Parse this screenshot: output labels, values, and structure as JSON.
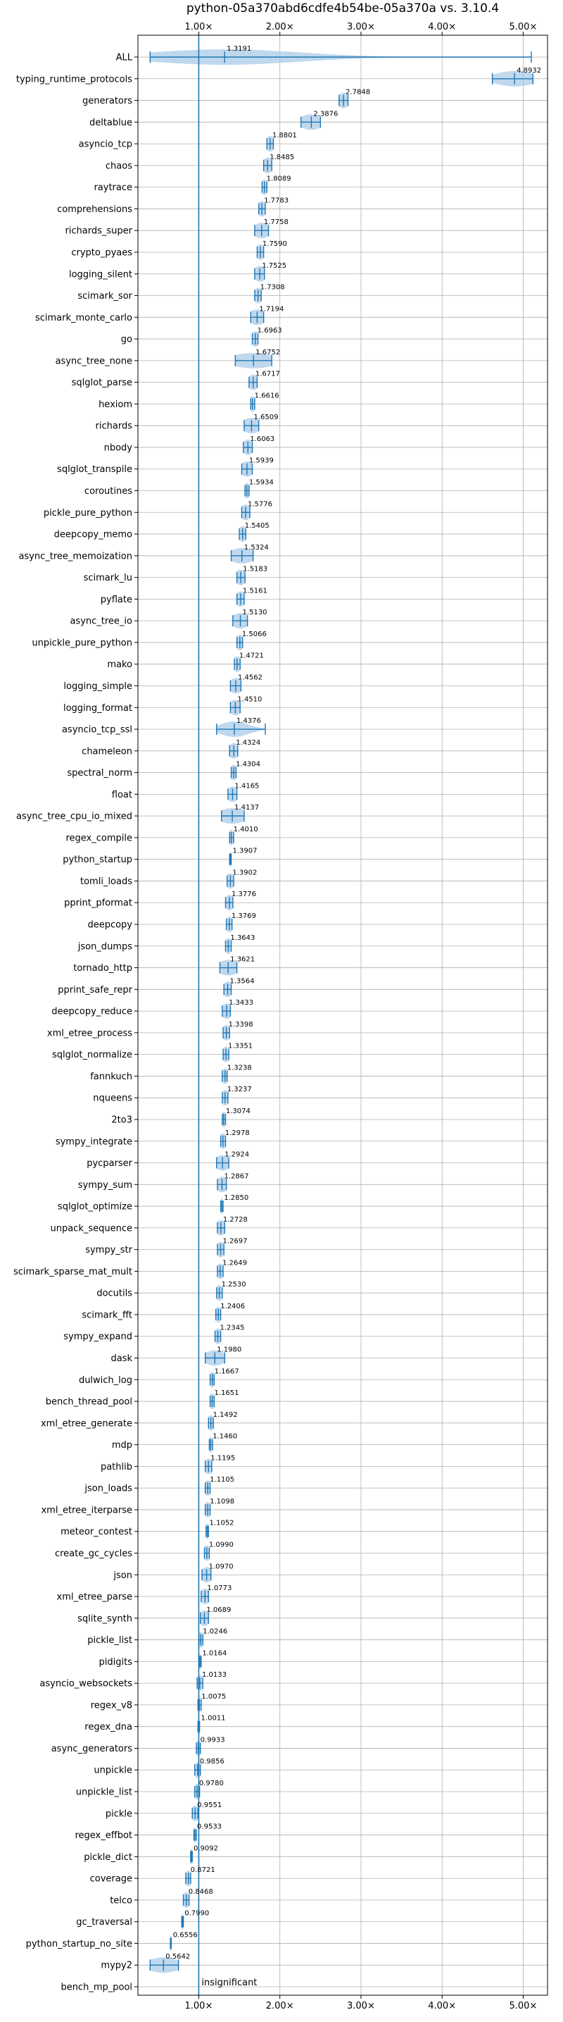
{
  "chart_data": {
    "type": "violin",
    "title": "python-05a370abd6cdfe4b54be-05a370a vs. 3.10.4",
    "xlim": [
      0.25,
      5.3
    ],
    "x_ticks": [
      1.0,
      2.0,
      3.0,
      4.0,
      5.0
    ],
    "x_tick_labels": [
      "1.00×",
      "2.00×",
      "3.00×",
      "4.00×",
      "5.00×"
    ],
    "reference_line": 1.0,
    "grid": true,
    "colors": {
      "accent": "#1f77b4",
      "violin": "#a9cbe8",
      "grid": "#b0b0b0"
    },
    "annotation": "insignificant",
    "benchmarks": [
      {
        "name": "ALL",
        "value": 1.3191,
        "label": "1.3191",
        "lo": 0.4,
        "hi": 5.1,
        "spread": 0.75
      },
      {
        "name": "typing_runtime_protocols",
        "value": 4.8932,
        "label": "4.8932",
        "lo": 4.62,
        "hi": 5.12,
        "spread": 0.2
      },
      {
        "name": "generators",
        "value": 2.7848,
        "label": "2.7848",
        "lo": 2.73,
        "hi": 2.84,
        "spread": 0.05
      },
      {
        "name": "deltablue",
        "value": 2.3876,
        "label": "2.3876",
        "lo": 2.26,
        "hi": 2.5,
        "spread": 0.11
      },
      {
        "name": "asyncio_tcp",
        "value": 1.8801,
        "label": "1.8801",
        "lo": 1.84,
        "hi": 1.92,
        "spread": 0.04
      },
      {
        "name": "chaos",
        "value": 1.8485,
        "label": "1.8485",
        "lo": 1.8,
        "hi": 1.9,
        "spread": 0.05
      },
      {
        "name": "raytrace",
        "value": 1.8089,
        "label": "1.8089",
        "lo": 1.78,
        "hi": 1.84,
        "spread": 0.03
      },
      {
        "name": "comprehensions",
        "value": 1.7783,
        "label": "1.7783",
        "lo": 1.74,
        "hi": 1.82,
        "spread": 0.04
      },
      {
        "name": "richards_super",
        "value": 1.7758,
        "label": "1.7758",
        "lo": 1.69,
        "hi": 1.86,
        "spread": 0.08
      },
      {
        "name": "crypto_pyaes",
        "value": 1.759,
        "label": "1.7590",
        "lo": 1.72,
        "hi": 1.8,
        "spread": 0.04
      },
      {
        "name": "logging_silent",
        "value": 1.7525,
        "label": "1.7525",
        "lo": 1.69,
        "hi": 1.81,
        "spread": 0.06
      },
      {
        "name": "scimark_sor",
        "value": 1.7308,
        "label": "1.7308",
        "lo": 1.69,
        "hi": 1.77,
        "spread": 0.04
      },
      {
        "name": "scimark_monte_carlo",
        "value": 1.7194,
        "label": "1.7194",
        "lo": 1.64,
        "hi": 1.8,
        "spread": 0.08
      },
      {
        "name": "go",
        "value": 1.6963,
        "label": "1.6963",
        "lo": 1.66,
        "hi": 1.73,
        "spread": 0.04
      },
      {
        "name": "async_tree_none",
        "value": 1.6752,
        "label": "1.6752",
        "lo": 1.45,
        "hi": 1.9,
        "spread": 0.22
      },
      {
        "name": "sqlglot_parse",
        "value": 1.6717,
        "label": "1.6717",
        "lo": 1.62,
        "hi": 1.72,
        "spread": 0.05
      },
      {
        "name": "hexiom",
        "value": 1.6616,
        "label": "1.6616",
        "lo": 1.64,
        "hi": 1.69,
        "spread": 0.03
      },
      {
        "name": "richards",
        "value": 1.6509,
        "label": "1.6509",
        "lo": 1.56,
        "hi": 1.74,
        "spread": 0.09
      },
      {
        "name": "nbody",
        "value": 1.6063,
        "label": "1.6063",
        "lo": 1.55,
        "hi": 1.66,
        "spread": 0.05
      },
      {
        "name": "sqlglot_transpile",
        "value": 1.5939,
        "label": "1.5939",
        "lo": 1.53,
        "hi": 1.66,
        "spread": 0.06
      },
      {
        "name": "coroutines",
        "value": 1.5934,
        "label": "1.5934",
        "lo": 1.57,
        "hi": 1.62,
        "spread": 0.025
      },
      {
        "name": "pickle_pure_python",
        "value": 1.5776,
        "label": "1.5776",
        "lo": 1.53,
        "hi": 1.63,
        "spread": 0.05
      },
      {
        "name": "deepcopy_memo",
        "value": 1.5405,
        "label": "1.5405",
        "lo": 1.5,
        "hi": 1.58,
        "spread": 0.04
      },
      {
        "name": "async_tree_memoization",
        "value": 1.5324,
        "label": "1.5324",
        "lo": 1.4,
        "hi": 1.67,
        "spread": 0.12
      },
      {
        "name": "scimark_lu",
        "value": 1.5183,
        "label": "1.5183",
        "lo": 1.47,
        "hi": 1.57,
        "spread": 0.05
      },
      {
        "name": "pyflate",
        "value": 1.5161,
        "label": "1.5161",
        "lo": 1.47,
        "hi": 1.56,
        "spread": 0.04
      },
      {
        "name": "async_tree_io",
        "value": 1.513,
        "label": "1.5130",
        "lo": 1.42,
        "hi": 1.6,
        "spread": 0.08
      },
      {
        "name": "unpickle_pure_python",
        "value": 1.5066,
        "label": "1.5066",
        "lo": 1.47,
        "hi": 1.54,
        "spread": 0.035
      },
      {
        "name": "mako",
        "value": 1.4721,
        "label": "1.4721",
        "lo": 1.44,
        "hi": 1.51,
        "spread": 0.035
      },
      {
        "name": "logging_simple",
        "value": 1.4562,
        "label": "1.4562",
        "lo": 1.39,
        "hi": 1.52,
        "spread": 0.06
      },
      {
        "name": "logging_format",
        "value": 1.451,
        "label": "1.4510",
        "lo": 1.39,
        "hi": 1.51,
        "spread": 0.06
      },
      {
        "name": "asyncio_tcp_ssl",
        "value": 1.4376,
        "label": "1.4376",
        "lo": 1.22,
        "hi": 1.82,
        "spread": 0.14
      },
      {
        "name": "chameleon",
        "value": 1.4324,
        "label": "1.4324",
        "lo": 1.38,
        "hi": 1.48,
        "spread": 0.05
      },
      {
        "name": "spectral_norm",
        "value": 1.4304,
        "label": "1.4304",
        "lo": 1.4,
        "hi": 1.46,
        "spread": 0.03
      },
      {
        "name": "float",
        "value": 1.4165,
        "label": "1.4165",
        "lo": 1.36,
        "hi": 1.47,
        "spread": 0.05
      },
      {
        "name": "async_tree_cpu_io_mixed",
        "value": 1.4137,
        "label": "1.4137",
        "lo": 1.28,
        "hi": 1.56,
        "spread": 0.14
      },
      {
        "name": "regex_compile",
        "value": 1.401,
        "label": "1.4010",
        "lo": 1.38,
        "hi": 1.43,
        "spread": 0.025
      },
      {
        "name": "python_startup",
        "value": 1.3907,
        "label": "1.3907",
        "lo": 1.38,
        "hi": 1.4,
        "spread": 0.01
      },
      {
        "name": "tomli_loads",
        "value": 1.3902,
        "label": "1.3902",
        "lo": 1.35,
        "hi": 1.43,
        "spread": 0.04
      },
      {
        "name": "pprint_pformat",
        "value": 1.3776,
        "label": "1.3776",
        "lo": 1.33,
        "hi": 1.42,
        "spread": 0.04
      },
      {
        "name": "deepcopy",
        "value": 1.3769,
        "label": "1.3769",
        "lo": 1.34,
        "hi": 1.41,
        "spread": 0.035
      },
      {
        "name": "json_dumps",
        "value": 1.3643,
        "label": "1.3643",
        "lo": 1.33,
        "hi": 1.4,
        "spread": 0.035
      },
      {
        "name": "tornado_http",
        "value": 1.3621,
        "label": "1.3621",
        "lo": 1.26,
        "hi": 1.47,
        "spread": 0.1
      },
      {
        "name": "pprint_safe_repr",
        "value": 1.3564,
        "label": "1.3564",
        "lo": 1.31,
        "hi": 1.4,
        "spread": 0.04
      },
      {
        "name": "deepcopy_reduce",
        "value": 1.3433,
        "label": "1.3433",
        "lo": 1.29,
        "hi": 1.39,
        "spread": 0.05
      },
      {
        "name": "xml_etree_process",
        "value": 1.3398,
        "label": "1.3398",
        "lo": 1.3,
        "hi": 1.38,
        "spread": 0.04
      },
      {
        "name": "sqlglot_normalize",
        "value": 1.3351,
        "label": "1.3351",
        "lo": 1.3,
        "hi": 1.37,
        "spread": 0.035
      },
      {
        "name": "fannkuch",
        "value": 1.3238,
        "label": "1.3238",
        "lo": 1.29,
        "hi": 1.35,
        "spread": 0.03
      },
      {
        "name": "nqueens",
        "value": 1.3237,
        "label": "1.3237",
        "lo": 1.29,
        "hi": 1.36,
        "spread": 0.035
      },
      {
        "name": "2to3",
        "value": 1.3074,
        "label": "1.3074",
        "lo": 1.29,
        "hi": 1.33,
        "spread": 0.02
      },
      {
        "name": "sympy_integrate",
        "value": 1.2978,
        "label": "1.2978",
        "lo": 1.27,
        "hi": 1.33,
        "spread": 0.03
      },
      {
        "name": "pycparser",
        "value": 1.2924,
        "label": "1.2924",
        "lo": 1.22,
        "hi": 1.37,
        "spread": 0.07
      },
      {
        "name": "sympy_sum",
        "value": 1.2867,
        "label": "1.2867",
        "lo": 1.23,
        "hi": 1.34,
        "spread": 0.055
      },
      {
        "name": "sqlglot_optimize",
        "value": 1.285,
        "label": "1.2850",
        "lo": 1.27,
        "hi": 1.3,
        "spread": 0.015
      },
      {
        "name": "unpack_sequence",
        "value": 1.2728,
        "label": "1.2728",
        "lo": 1.23,
        "hi": 1.32,
        "spread": 0.045
      },
      {
        "name": "sympy_str",
        "value": 1.2697,
        "label": "1.2697",
        "lo": 1.23,
        "hi": 1.31,
        "spread": 0.04
      },
      {
        "name": "scimark_sparse_mat_mult",
        "value": 1.2649,
        "label": "1.2649",
        "lo": 1.23,
        "hi": 1.3,
        "spread": 0.035
      },
      {
        "name": "docutils",
        "value": 1.253,
        "label": "1.2530",
        "lo": 1.22,
        "hi": 1.29,
        "spread": 0.035
      },
      {
        "name": "scimark_fft",
        "value": 1.2406,
        "label": "1.2406",
        "lo": 1.21,
        "hi": 1.27,
        "spread": 0.03
      },
      {
        "name": "sympy_expand",
        "value": 1.2345,
        "label": "1.2345",
        "lo": 1.2,
        "hi": 1.27,
        "spread": 0.035
      },
      {
        "name": "dask",
        "value": 1.198,
        "label": "1.1980",
        "lo": 1.08,
        "hi": 1.32,
        "spread": 0.1
      },
      {
        "name": "dulwich_log",
        "value": 1.1667,
        "label": "1.1667",
        "lo": 1.14,
        "hi": 1.19,
        "spread": 0.025
      },
      {
        "name": "bench_thread_pool",
        "value": 1.1651,
        "label": "1.1651",
        "lo": 1.14,
        "hi": 1.19,
        "spread": 0.025
      },
      {
        "name": "xml_etree_generate",
        "value": 1.1492,
        "label": "1.1492",
        "lo": 1.12,
        "hi": 1.18,
        "spread": 0.03
      },
      {
        "name": "mdp",
        "value": 1.146,
        "label": "1.1460",
        "lo": 1.13,
        "hi": 1.17,
        "spread": 0.02
      },
      {
        "name": "pathlib",
        "value": 1.1195,
        "label": "1.1195",
        "lo": 1.08,
        "hi": 1.16,
        "spread": 0.04
      },
      {
        "name": "json_loads",
        "value": 1.1105,
        "label": "1.1105",
        "lo": 1.08,
        "hi": 1.14,
        "spread": 0.03
      },
      {
        "name": "xml_etree_iterparse",
        "value": 1.1098,
        "label": "1.1098",
        "lo": 1.08,
        "hi": 1.14,
        "spread": 0.03
      },
      {
        "name": "meteor_contest",
        "value": 1.1052,
        "label": "1.1052",
        "lo": 1.09,
        "hi": 1.12,
        "spread": 0.015
      },
      {
        "name": "create_gc_cycles",
        "value": 1.099,
        "label": "1.0990",
        "lo": 1.07,
        "hi": 1.13,
        "spread": 0.03
      },
      {
        "name": "json",
        "value": 1.097,
        "label": "1.0970",
        "lo": 1.04,
        "hi": 1.15,
        "spread": 0.05
      },
      {
        "name": "xml_etree_parse",
        "value": 1.0773,
        "label": "1.0773",
        "lo": 1.03,
        "hi": 1.12,
        "spread": 0.045
      },
      {
        "name": "sqlite_synth",
        "value": 1.0689,
        "label": "1.0689",
        "lo": 1.02,
        "hi": 1.12,
        "spread": 0.05
      },
      {
        "name": "pickle_list",
        "value": 1.0246,
        "label": "1.0246",
        "lo": 1.0,
        "hi": 1.05,
        "spread": 0.025
      },
      {
        "name": "pidigits",
        "value": 1.0164,
        "label": "1.0164",
        "lo": 1.005,
        "hi": 1.03,
        "spread": 0.012
      },
      {
        "name": "asyncio_websockets",
        "value": 1.0133,
        "label": "1.0133",
        "lo": 0.98,
        "hi": 1.05,
        "spread": 0.035
      },
      {
        "name": "regex_v8",
        "value": 1.0075,
        "label": "1.0075",
        "lo": 0.99,
        "hi": 1.03,
        "spread": 0.02
      },
      {
        "name": "regex_dna",
        "value": 1.0011,
        "label": "1.0011",
        "lo": 0.99,
        "hi": 1.01,
        "spread": 0.01
      },
      {
        "name": "async_generators",
        "value": 0.9933,
        "label": "0.9933",
        "lo": 0.97,
        "hi": 1.02,
        "spread": 0.025
      },
      {
        "name": "unpickle",
        "value": 0.9856,
        "label": "0.9856",
        "lo": 0.95,
        "hi": 1.02,
        "spread": 0.035
      },
      {
        "name": "unpickle_list",
        "value": 0.978,
        "label": "0.9780",
        "lo": 0.95,
        "hi": 1.01,
        "spread": 0.03
      },
      {
        "name": "pickle",
        "value": 0.9551,
        "label": "0.9551",
        "lo": 0.92,
        "hi": 0.99,
        "spread": 0.035
      },
      {
        "name": "regex_effbot",
        "value": 0.9533,
        "label": "0.9533",
        "lo": 0.94,
        "hi": 0.97,
        "spread": 0.015
      },
      {
        "name": "pickle_dict",
        "value": 0.9092,
        "label": "0.9092",
        "lo": 0.9,
        "hi": 0.92,
        "spread": 0.01
      },
      {
        "name": "coverage",
        "value": 0.8721,
        "label": "0.8721",
        "lo": 0.84,
        "hi": 0.9,
        "spread": 0.03
      },
      {
        "name": "telco",
        "value": 0.8468,
        "label": "0.8468",
        "lo": 0.81,
        "hi": 0.88,
        "spread": 0.035
      },
      {
        "name": "gc_traversal",
        "value": 0.799,
        "label": "0.7990",
        "lo": 0.79,
        "hi": 0.81,
        "spread": 0.01
      },
      {
        "name": "python_startup_no_site",
        "value": 0.6556,
        "label": "0.6556",
        "lo": 0.65,
        "hi": 0.66,
        "spread": 0.006
      },
      {
        "name": "mypy2",
        "value": 0.5642,
        "label": "0.5642",
        "lo": 0.4,
        "hi": 0.75,
        "spread": 0.15
      },
      {
        "name": "bench_mp_pool",
        "value": null,
        "label": "",
        "lo": null,
        "hi": null,
        "spread": 0
      }
    ]
  }
}
